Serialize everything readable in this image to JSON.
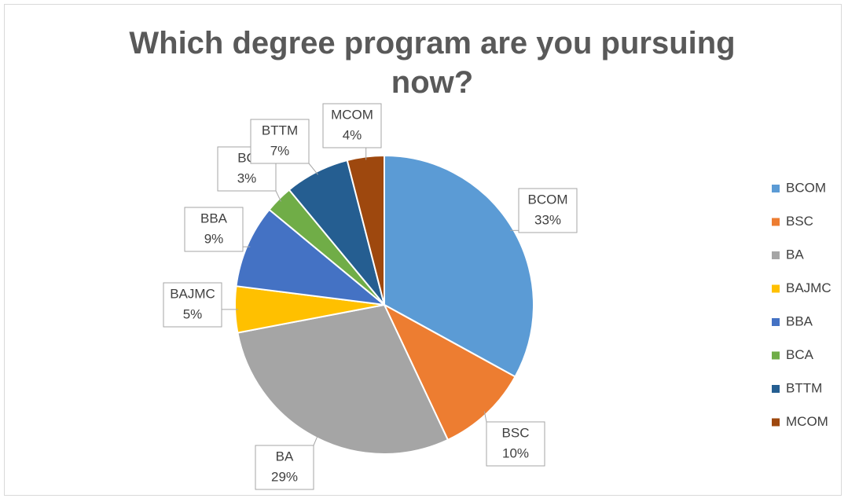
{
  "chart_data": {
    "type": "pie",
    "title": "Which degree program are you pursuing now?",
    "categories": [
      "BCOM",
      "BSC",
      "BA",
      "BAJMC",
      "BBA",
      "BCA",
      "BTTM",
      "MCOM"
    ],
    "values": [
      33,
      10,
      29,
      5,
      9,
      3,
      7,
      4
    ],
    "value_labels": [
      "33%",
      "10%",
      "29%",
      "5%",
      "9%",
      "3%",
      "7%",
      "4%"
    ],
    "label_categories": [
      "BCOM",
      "BSC",
      "BA",
      "BAJMC",
      "BBA",
      "BC",
      "BTTM",
      "MCOM"
    ],
    "colors": [
      "#5b9bd5",
      "#ed7d31",
      "#a5a5a5",
      "#ffc000",
      "#4472c4",
      "#70ad47",
      "#255e91",
      "#9e480e"
    ],
    "legend": "right"
  }
}
